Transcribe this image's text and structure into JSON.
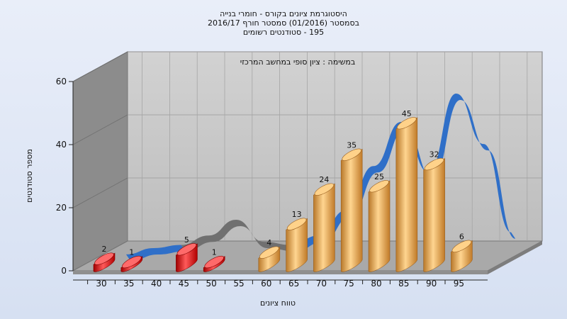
{
  "header": {
    "title_line1": "היסטוגרמת ציונים בקורס - חומרי בנייה",
    "title_line2": "בסמסטר  (01/2016)  סמסטר חורף 2016/17",
    "title_line3": "195 - סטודנטים רשומים"
  },
  "chart_data": {
    "type": "bar",
    "annotation": "במשימה : ציון סופי במחשב המרכזי",
    "xlabel": "טווח ציונים",
    "ylabel": "מספר סטודנטים",
    "categories": [
      "30",
      "35",
      "40",
      "45",
      "50",
      "55",
      "60",
      "65",
      "70",
      "75",
      "80",
      "85",
      "90",
      "95"
    ],
    "values": [
      2,
      1,
      0,
      5,
      1,
      0,
      4,
      13,
      24,
      35,
      25,
      45,
      32,
      6
    ],
    "bar_category_indices": [
      0,
      1,
      3,
      4,
      6,
      7,
      8,
      9,
      10,
      11,
      12,
      13
    ],
    "failing_threshold": 55,
    "ylim": [
      0,
      60
    ],
    "yticks": [
      0,
      20,
      40,
      60
    ],
    "grid": true,
    "curve_values": [
      0,
      2,
      3,
      6,
      11,
      4,
      3,
      6,
      14,
      28,
      42,
      26,
      51,
      35,
      7
    ],
    "colors": {
      "failing_bar": "#e01010",
      "passing_bar": "#f0b050",
      "curve": "#2f6fc8",
      "curve_failing": "#707070",
      "back_wall": "#c8c8c8",
      "side_wall": "#8a8a8a",
      "floor": "#a8a8a8"
    }
  }
}
